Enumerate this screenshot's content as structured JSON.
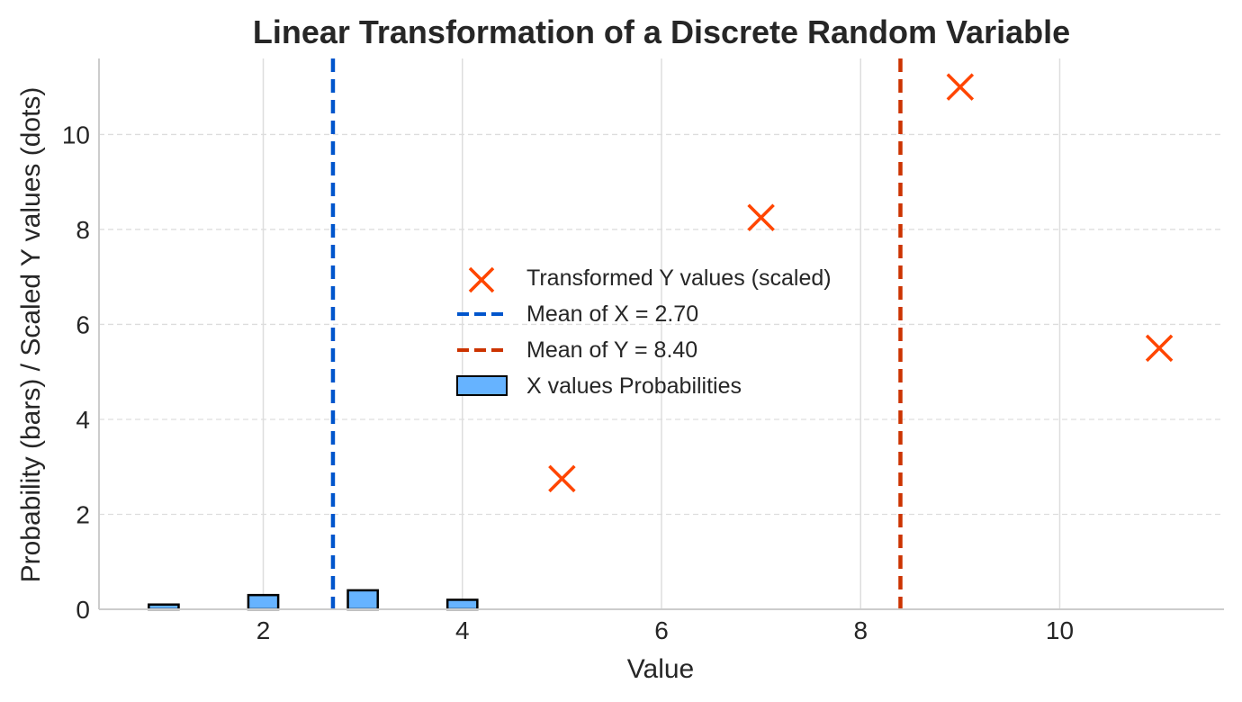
{
  "chart_data": {
    "type": "bar",
    "title": "Linear Transformation of a Discrete Random Variable",
    "xlabel": "Value",
    "ylabel": "Probability (bars) / Scaled Y values (dots)",
    "xlim": [
      0.35,
      11.65
    ],
    "ylim": [
      0,
      11.6
    ],
    "x_ticks": [
      2,
      4,
      6,
      8,
      10
    ],
    "y_ticks": [
      0,
      2,
      4,
      6,
      8,
      10
    ],
    "grid": true,
    "legend_position": "center",
    "bars": {
      "name": "X values Probabilities",
      "x": [
        1,
        2,
        3,
        4
      ],
      "values": [
        0.1,
        0.3,
        0.4,
        0.2
      ],
      "color": "#66b3ff"
    },
    "scatter": {
      "name": "Transformed Y values (scaled)",
      "x": [
        5,
        7,
        9,
        11
      ],
      "y": [
        2.75,
        8.25,
        11.0,
        5.5
      ],
      "color": "#ff4500"
    },
    "lines": [
      {
        "name": "Mean of X = 2.70",
        "x": 2.7,
        "color": "#0055cc"
      },
      {
        "name": "Mean of Y = 8.40",
        "x": 8.4,
        "color": "#cc3300"
      }
    ]
  }
}
